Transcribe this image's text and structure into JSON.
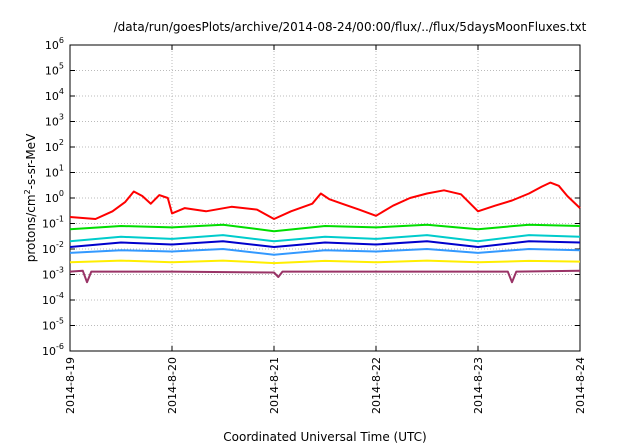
{
  "chart_data": {
    "type": "line",
    "title": "/data/run/goesPlots/archive/2014-08-24/00:00/flux/../flux/5daysMoonFluxes.txt",
    "xlabel": "Coordinated Universal Time (UTC)",
    "ylabel_prefix": "protons/cm",
    "ylabel_sup": "2",
    "ylabel_suffix": "-s-sr-MeV",
    "y_scale": "log",
    "ylim": [
      1e-06,
      1000000.0
    ],
    "y_ticks": [
      {
        "base": "10",
        "exp": "-6"
      },
      {
        "base": "10",
        "exp": "-5"
      },
      {
        "base": "10",
        "exp": "-4"
      },
      {
        "base": "10",
        "exp": "-3"
      },
      {
        "base": "10",
        "exp": "-2"
      },
      {
        "base": "10",
        "exp": "-1"
      },
      {
        "base": "10",
        "exp": "0"
      },
      {
        "base": "10",
        "exp": "1"
      },
      {
        "base": "10",
        "exp": "2"
      },
      {
        "base": "10",
        "exp": "3"
      },
      {
        "base": "10",
        "exp": "4"
      },
      {
        "base": "10",
        "exp": "5"
      },
      {
        "base": "10",
        "exp": "6"
      }
    ],
    "xlim": [
      "2014-08-19",
      "2014-08-24"
    ],
    "x_ticks": [
      "2014-8-19",
      "2014-8-20",
      "2014-8-21",
      "2014-8-22",
      "2014-8-23",
      "2014-8-24"
    ],
    "grid": true,
    "series": [
      {
        "color": "#ff0000",
        "values": [
          [
            "2014-08-19 00:00",
            0.18
          ],
          [
            "2014-08-19 06:00",
            0.15
          ],
          [
            "2014-08-19 10:00",
            0.3
          ],
          [
            "2014-08-19 13:00",
            0.7
          ],
          [
            "2014-08-19 15:00",
            1.8
          ],
          [
            "2014-08-19 17:00",
            1.2
          ],
          [
            "2014-08-19 19:00",
            0.6
          ],
          [
            "2014-08-19 21:00",
            1.3
          ],
          [
            "2014-08-19 23:00",
            1.0
          ],
          [
            "2014-08-20 00:00",
            0.25
          ],
          [
            "2014-08-20 03:00",
            0.4
          ],
          [
            "2014-08-20 08:00",
            0.3
          ],
          [
            "2014-08-20 14:00",
            0.45
          ],
          [
            "2014-08-20 20:00",
            0.35
          ],
          [
            "2014-08-21 00:00",
            0.15
          ],
          [
            "2014-08-21 04:00",
            0.3
          ],
          [
            "2014-08-21 09:00",
            0.6
          ],
          [
            "2014-08-21 11:00",
            1.5
          ],
          [
            "2014-08-21 13:00",
            0.9
          ],
          [
            "2014-08-21 16:00",
            0.6
          ],
          [
            "2014-08-21 20:00",
            0.35
          ],
          [
            "2014-08-22 00:00",
            0.2
          ],
          [
            "2014-08-22 04:00",
            0.5
          ],
          [
            "2014-08-22 08:00",
            1.0
          ],
          [
            "2014-08-22 12:00",
            1.5
          ],
          [
            "2014-08-22 16:00",
            2.0
          ],
          [
            "2014-08-22 20:00",
            1.4
          ],
          [
            "2014-08-23 00:00",
            0.3
          ],
          [
            "2014-08-23 04:00",
            0.5
          ],
          [
            "2014-08-23 08:00",
            0.8
          ],
          [
            "2014-08-23 12:00",
            1.5
          ],
          [
            "2014-08-23 15:00",
            2.8
          ],
          [
            "2014-08-23 17:00",
            4.0
          ],
          [
            "2014-08-23 19:00",
            3.0
          ],
          [
            "2014-08-23 21:00",
            1.2
          ],
          [
            "2014-08-24 00:00",
            0.4
          ]
        ]
      },
      {
        "color": "#00dd00",
        "values": [
          [
            "2014-08-19 00:00",
            0.06
          ],
          [
            "2014-08-19 12:00",
            0.08
          ],
          [
            "2014-08-20 00:00",
            0.07
          ],
          [
            "2014-08-20 12:00",
            0.09
          ],
          [
            "2014-08-21 00:00",
            0.05
          ],
          [
            "2014-08-21 12:00",
            0.08
          ],
          [
            "2014-08-22 00:00",
            0.07
          ],
          [
            "2014-08-22 12:00",
            0.09
          ],
          [
            "2014-08-23 00:00",
            0.06
          ],
          [
            "2014-08-23 12:00",
            0.09
          ],
          [
            "2014-08-24 00:00",
            0.08
          ]
        ]
      },
      {
        "color": "#00cccc",
        "values": [
          [
            "2014-08-19 00:00",
            0.02
          ],
          [
            "2014-08-19 12:00",
            0.03
          ],
          [
            "2014-08-20 00:00",
            0.025
          ],
          [
            "2014-08-20 12:00",
            0.035
          ],
          [
            "2014-08-21 00:00",
            0.02
          ],
          [
            "2014-08-21 12:00",
            0.03
          ],
          [
            "2014-08-22 00:00",
            0.025
          ],
          [
            "2014-08-22 12:00",
            0.035
          ],
          [
            "2014-08-23 00:00",
            0.02
          ],
          [
            "2014-08-23 12:00",
            0.035
          ],
          [
            "2014-08-24 00:00",
            0.03
          ]
        ]
      },
      {
        "color": "#0000cc",
        "values": [
          [
            "2014-08-19 00:00",
            0.012
          ],
          [
            "2014-08-19 12:00",
            0.018
          ],
          [
            "2014-08-20 00:00",
            0.015
          ],
          [
            "2014-08-20 12:00",
            0.02
          ],
          [
            "2014-08-21 00:00",
            0.012
          ],
          [
            "2014-08-21 12:00",
            0.018
          ],
          [
            "2014-08-22 00:00",
            0.015
          ],
          [
            "2014-08-22 12:00",
            0.02
          ],
          [
            "2014-08-23 00:00",
            0.012
          ],
          [
            "2014-08-23 12:00",
            0.02
          ],
          [
            "2014-08-24 00:00",
            0.018
          ]
        ]
      },
      {
        "color": "#3399ff",
        "values": [
          [
            "2014-08-19 00:00",
            0.007
          ],
          [
            "2014-08-19 12:00",
            0.009
          ],
          [
            "2014-08-20 00:00",
            0.008
          ],
          [
            "2014-08-20 12:00",
            0.01
          ],
          [
            "2014-08-21 00:00",
            0.006
          ],
          [
            "2014-08-21 12:00",
            0.009
          ],
          [
            "2014-08-22 00:00",
            0.008
          ],
          [
            "2014-08-22 12:00",
            0.01
          ],
          [
            "2014-08-23 00:00",
            0.007
          ],
          [
            "2014-08-23 12:00",
            0.01
          ],
          [
            "2014-08-24 00:00",
            0.009
          ]
        ]
      },
      {
        "color": "#ffee00",
        "values": [
          [
            "2014-08-19 00:00",
            0.003
          ],
          [
            "2014-08-19 12:00",
            0.0035
          ],
          [
            "2014-08-20 00:00",
            0.003
          ],
          [
            "2014-08-20 12:00",
            0.0035
          ],
          [
            "2014-08-21 00:00",
            0.0028
          ],
          [
            "2014-08-21 12:00",
            0.0034
          ],
          [
            "2014-08-22 00:00",
            0.003
          ],
          [
            "2014-08-22 12:00",
            0.0035
          ],
          [
            "2014-08-23 00:00",
            0.003
          ],
          [
            "2014-08-23 12:00",
            0.0034
          ],
          [
            "2014-08-24 00:00",
            0.0032
          ]
        ]
      },
      {
        "color": "#993366",
        "values": [
          [
            "2014-08-19 00:00",
            0.0013
          ],
          [
            "2014-08-19 03:00",
            0.0014
          ],
          [
            "2014-08-19 04:00",
            0.0005
          ],
          [
            "2014-08-19 05:00",
            0.0013
          ],
          [
            "2014-08-20 00:00",
            0.0013
          ],
          [
            "2014-08-21 00:00",
            0.0012
          ],
          [
            "2014-08-21 01:00",
            0.0008
          ],
          [
            "2014-08-21 02:00",
            0.0013
          ],
          [
            "2014-08-22 00:00",
            0.0013
          ],
          [
            "2014-08-23 00:00",
            0.0013
          ],
          [
            "2014-08-23 07:00",
            0.0013
          ],
          [
            "2014-08-23 08:00",
            0.0005
          ],
          [
            "2014-08-23 09:00",
            0.0013
          ],
          [
            "2014-08-24 00:00",
            0.0014
          ]
        ]
      }
    ]
  }
}
